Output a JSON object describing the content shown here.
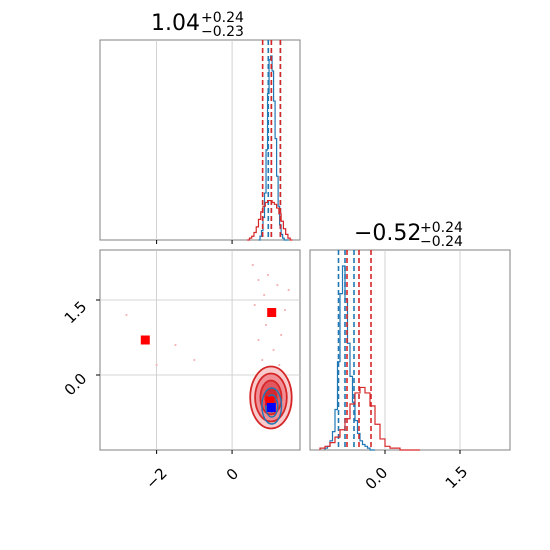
{
  "chart_data": {
    "type": "corner",
    "parameters": [
      {
        "title": {
          "value": "1.04",
          "upper": "+0.24",
          "lower": "−0.23"
        },
        "xlim": [
          -3.5,
          1.8
        ],
        "ticks": [
          -2,
          0
        ],
        "tick_labels": [
          "−2",
          "0"
        ]
      },
      {
        "title": {
          "value": "−0.52",
          "upper": "+0.24",
          "lower": "−0.24"
        },
        "xlim": [
          -1.5,
          2.5
        ],
        "ticks": [
          0.0,
          1.5
        ],
        "tick_labels": [
          "0.0",
          "1.5"
        ],
        "ylim": [
          -1.5,
          2.5
        ],
        "ytick_labels": [
          "0.0",
          "1.5"
        ]
      }
    ],
    "histograms": [
      {
        "param": 0,
        "series": [
          {
            "color": "#1f77b4",
            "quantiles": [
              0.96,
              1.04,
              1.28
            ],
            "bins": [
              0.7,
              0.74,
              0.78,
              0.82,
              0.86,
              0.9,
              0.94,
              0.98,
              1.02,
              1.06,
              1.1,
              1.14,
              1.18,
              1.22,
              1.26,
              1.3,
              1.34,
              1.38,
              1.42,
              1.46,
              1.5
            ],
            "counts": [
              0,
              2,
              5,
              12,
              25,
              48,
              78,
              96,
              98,
              90,
              74,
              54,
              34,
              18,
              8,
              3,
              1,
              0,
              0,
              0
            ]
          },
          {
            "color": "#d62728",
            "quantiles": [
              0.81,
              1.04,
              1.28
            ],
            "bins": [
              0.4,
              0.46,
              0.52,
              0.58,
              0.64,
              0.7,
              0.76,
              0.82,
              0.88,
              0.94,
              1.0,
              1.06,
              1.12,
              1.18,
              1.24,
              1.3,
              1.36,
              1.42,
              1.48,
              1.54,
              1.6
            ],
            "counts": [
              0,
              1,
              2,
              4,
              7,
              11,
              15,
              18,
              20,
              21,
              21,
              20,
              19,
              17,
              14,
              10,
              6,
              3,
              1,
              0
            ]
          }
        ]
      },
      {
        "param": 1,
        "series": [
          {
            "color": "#1f77b4",
            "quantiles": [
              -0.93,
              -0.8,
              -0.62
            ],
            "bins": [
              -1.2,
              -1.15,
              -1.1,
              -1.05,
              -1.0,
              -0.95,
              -0.9,
              -0.85,
              -0.8,
              -0.75,
              -0.7,
              -0.65,
              -0.6,
              -0.55,
              -0.5,
              -0.45,
              -0.4,
              -0.35,
              -0.3,
              -0.25,
              -0.2
            ],
            "counts": [
              1,
              2,
              5,
              10,
              22,
              48,
              85,
              100,
              82,
              58,
              40,
              26,
              16,
              9,
              5,
              3,
              2,
              1,
              0,
              0
            ]
          },
          {
            "color": "#d62728",
            "quantiles": [
              -0.76,
              -0.52,
              -0.28
            ],
            "bins": [
              -1.3,
              -1.2,
              -1.1,
              -1.0,
              -0.9,
              -0.8,
              -0.7,
              -0.6,
              -0.5,
              -0.4,
              -0.3,
              -0.2,
              -0.1,
              0.0,
              0.1,
              0.2,
              0.3,
              0.4,
              0.5,
              0.6,
              0.7
            ],
            "counts": [
              1,
              2,
              4,
              7,
              11,
              17,
              25,
              31,
              34,
              31,
              24,
              14,
              6,
              2,
              1,
              1,
              0,
              0,
              0,
              0
            ]
          }
        ]
      }
    ],
    "scatter": {
      "markers": [
        {
          "color": "#ff0000",
          "x": -2.3,
          "y": 0.7
        },
        {
          "color": "#ff0000",
          "x": 1.05,
          "y": 1.25
        },
        {
          "color": "#ff0000",
          "x": 1.0,
          "y": -0.52
        },
        {
          "color": "#0000ff",
          "x": 1.04,
          "y": -0.65
        }
      ],
      "contours": [
        {
          "color": "#d62728",
          "center": [
            1.03,
            -0.45
          ],
          "levels": [
            [
              0.55,
              0.62
            ],
            [
              0.42,
              0.48
            ],
            [
              0.28,
              0.34
            ],
            [
              0.15,
              0.18
            ]
          ]
        },
        {
          "color": "#1f77b4",
          "center": [
            1.05,
            -0.62
          ],
          "levels": [
            [
              0.26,
              0.36
            ],
            [
              0.16,
              0.22
            ],
            [
              0.08,
              0.12
            ]
          ]
        }
      ],
      "points": [
        {
          "x": 0.55,
          "y": 2.2
        },
        {
          "x": 0.7,
          "y": 1.9
        },
        {
          "x": 0.85,
          "y": 1.6
        },
        {
          "x": 1.2,
          "y": 1.8
        },
        {
          "x": 1.4,
          "y": 1.3
        },
        {
          "x": 0.9,
          "y": 1.0
        },
        {
          "x": 1.3,
          "y": 0.8
        },
        {
          "x": 0.6,
          "y": 1.4
        },
        {
          "x": 1.1,
          "y": 0.5
        },
        {
          "x": 0.8,
          "y": 0.3
        },
        {
          "x": 1.5,
          "y": 1.7
        },
        {
          "x": 0.95,
          "y": 2.0
        },
        {
          "x": -1.5,
          "y": 0.6
        },
        {
          "x": -1.0,
          "y": 0.3
        },
        {
          "x": -2.8,
          "y": 1.2
        },
        {
          "x": -2.0,
          "y": 0.2
        },
        {
          "x": 1.25,
          "y": 0.2
        },
        {
          "x": 0.7,
          "y": 0.7
        }
      ]
    },
    "grid": true
  }
}
